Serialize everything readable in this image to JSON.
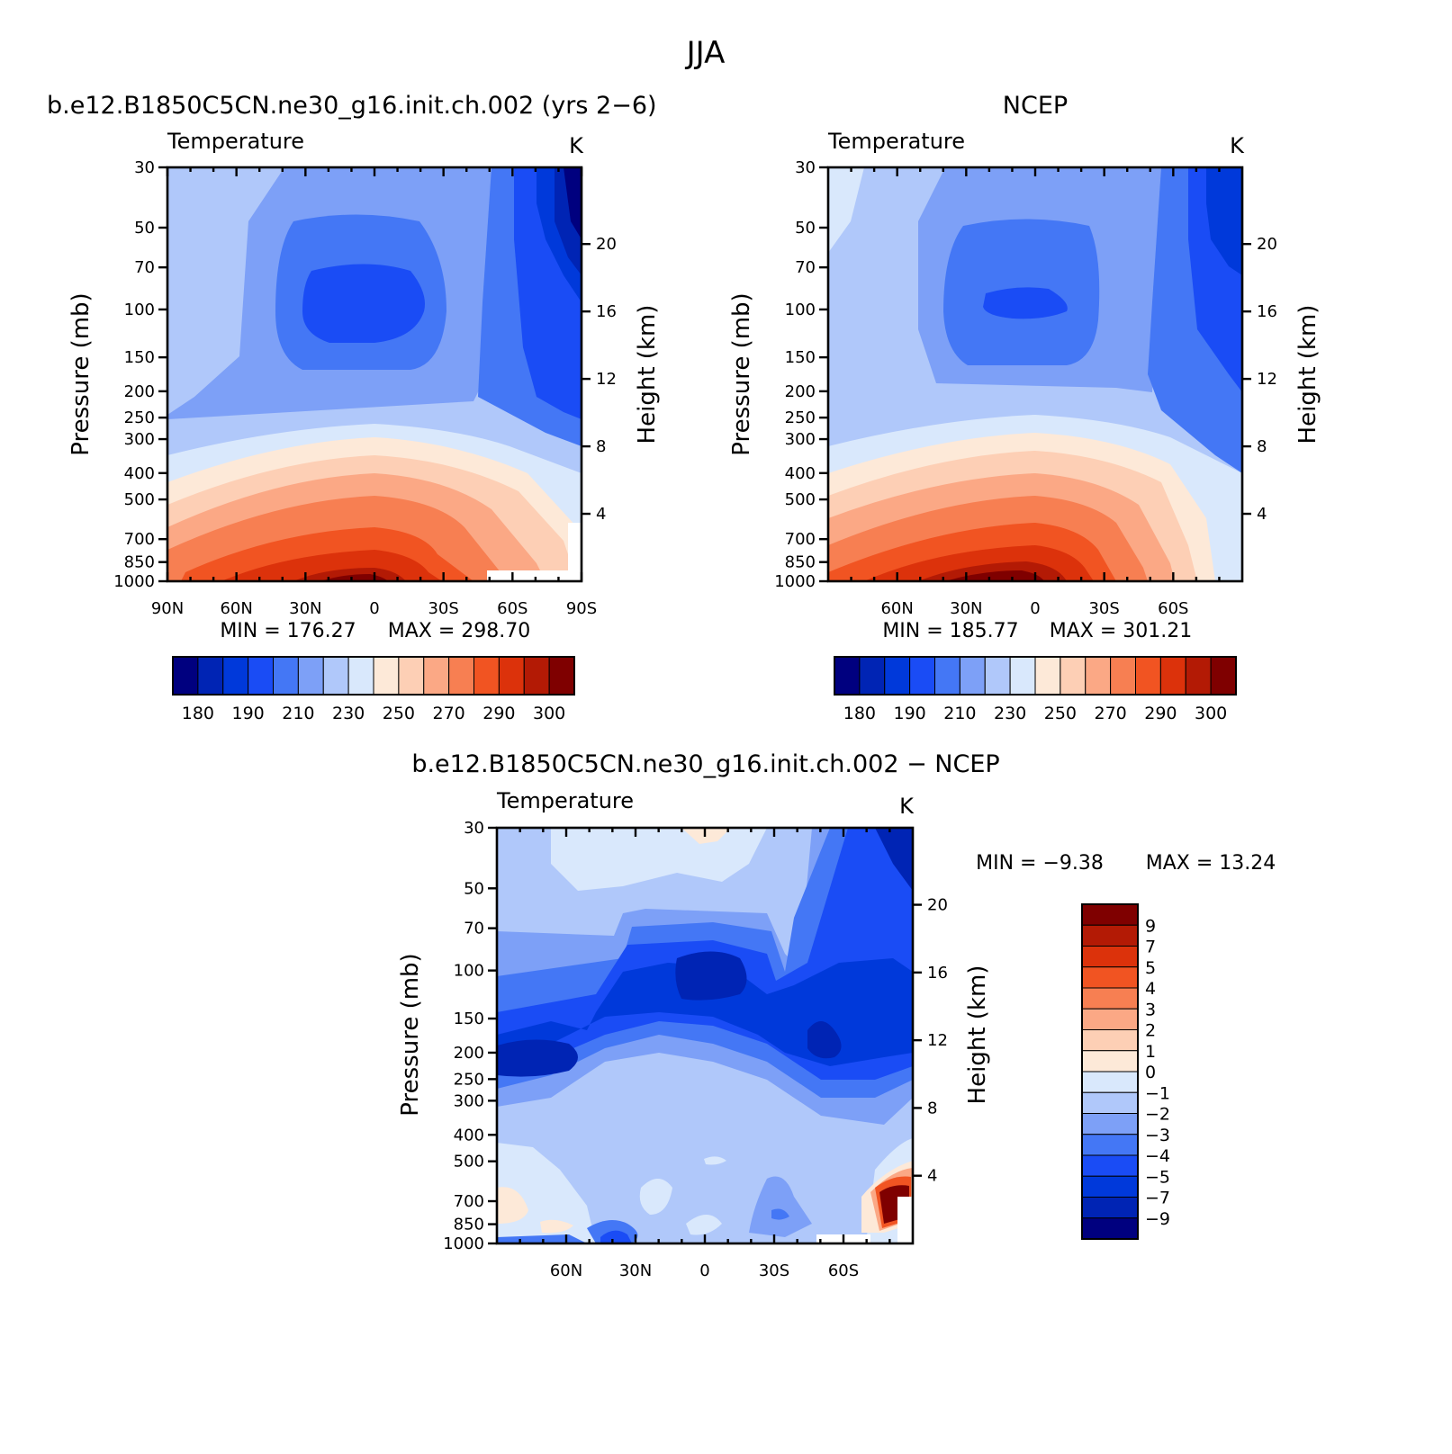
{
  "figure_title": "JJA",
  "chart_data": [
    {
      "type": "heatmap",
      "panel": "model",
      "title": "b.e12.B1850C5CN.ne30_g16.init.ch.002 (yrs 2−6)",
      "variable": "Temperature",
      "units": "K",
      "ylabel": "Pressure (mb)",
      "ylabel_right": "Height (km)",
      "x_ticks": [
        "90N",
        "60N",
        "30N",
        "0",
        "30S",
        "60S",
        "90S"
      ],
      "x_tick_values": [
        90,
        60,
        30,
        0,
        -30,
        -60,
        -90
      ],
      "xlim": [
        90,
        -90
      ],
      "y_ticks": [
        30,
        50,
        70,
        100,
        150,
        200,
        250,
        300,
        400,
        500,
        700,
        850,
        1000
      ],
      "ylim": [
        1000,
        30
      ],
      "y_scale": "log",
      "height_ticks": [
        4,
        8,
        12,
        16,
        20
      ],
      "min_label": "MIN = 176.27",
      "max_label": "MAX = 298.70",
      "min": 176.27,
      "max": 298.7,
      "colorbar_labels": [
        "180",
        "190",
        "210",
        "230",
        "250",
        "270",
        "290",
        "300"
      ],
      "colorbar_levels": [
        180,
        185,
        190,
        200,
        210,
        220,
        230,
        240,
        250,
        260,
        270,
        280,
        290,
        295,
        300
      ],
      "colorbar_orientation": "horizontal"
    },
    {
      "type": "heatmap",
      "panel": "obs",
      "title": "NCEP",
      "variable": "Temperature",
      "units": "K",
      "ylabel": "Pressure (mb)",
      "ylabel_right": "Height (km)",
      "x_ticks": [
        "60N",
        "30N",
        "0",
        "30S",
        "60S"
      ],
      "x_tick_values": [
        60,
        30,
        0,
        -30,
        -60
      ],
      "xlim": [
        90,
        -90
      ],
      "y_ticks": [
        30,
        50,
        70,
        100,
        150,
        200,
        250,
        300,
        400,
        500,
        700,
        850,
        1000
      ],
      "ylim": [
        1000,
        30
      ],
      "y_scale": "log",
      "height_ticks": [
        4,
        8,
        12,
        16,
        20
      ],
      "min_label": "MIN = 185.77",
      "max_label": "MAX = 301.21",
      "min": 185.77,
      "max": 301.21,
      "colorbar_labels": [
        "180",
        "190",
        "210",
        "230",
        "250",
        "270",
        "290",
        "300"
      ],
      "colorbar_levels": [
        180,
        185,
        190,
        200,
        210,
        220,
        230,
        240,
        250,
        260,
        270,
        280,
        290,
        295,
        300
      ],
      "colorbar_orientation": "horizontal"
    },
    {
      "type": "heatmap",
      "panel": "diff",
      "title": "b.e12.B1850C5CN.ne30_g16.init.ch.002 − NCEP",
      "variable": "Temperature",
      "units": "K",
      "ylabel": "Pressure (mb)",
      "ylabel_right": "Height (km)",
      "x_ticks": [
        "60N",
        "30N",
        "0",
        "30S",
        "60S"
      ],
      "x_tick_values": [
        60,
        30,
        0,
        -30,
        -60
      ],
      "xlim": [
        90,
        -90
      ],
      "y_ticks": [
        30,
        50,
        70,
        100,
        150,
        200,
        250,
        300,
        400,
        500,
        700,
        850,
        1000
      ],
      "ylim": [
        1000,
        30
      ],
      "y_scale": "log",
      "height_ticks": [
        4,
        8,
        12,
        16,
        20
      ],
      "min_label": "MIN = −9.38",
      "max_label": "MAX = 13.24",
      "min": -9.38,
      "max": 13.24,
      "colorbar_labels": [
        "9",
        "7",
        "5",
        "4",
        "3",
        "2",
        "1",
        "0",
        "−1",
        "−2",
        "−3",
        "−4",
        "−5",
        "−7",
        "−9"
      ],
      "colorbar_levels": [
        -9,
        -7,
        -5,
        -4,
        -3,
        -2,
        -1,
        0,
        1,
        2,
        3,
        4,
        5,
        7,
        9
      ],
      "colorbar_orientation": "vertical"
    }
  ],
  "colors": {
    "abs_palette": [
      "#00007f",
      "#0024b4",
      "#0039da",
      "#1a4cf5",
      "#4477f5",
      "#7da0f7",
      "#b0c8fa",
      "#d9e8fc",
      "#fde9d8",
      "#fdcfb5",
      "#fba885",
      "#f77f52",
      "#f15422",
      "#dc320b",
      "#b31a05",
      "#7f0000"
    ],
    "diff_palette": [
      "#00007f",
      "#0024b4",
      "#0039da",
      "#1a4cf5",
      "#4477f5",
      "#7da0f7",
      "#b0c8fa",
      "#d9e8fc",
      "#fde9d8",
      "#fdcfb5",
      "#fba885",
      "#f77f52",
      "#f15422",
      "#dc320b",
      "#b31a05",
      "#7f0000"
    ]
  }
}
